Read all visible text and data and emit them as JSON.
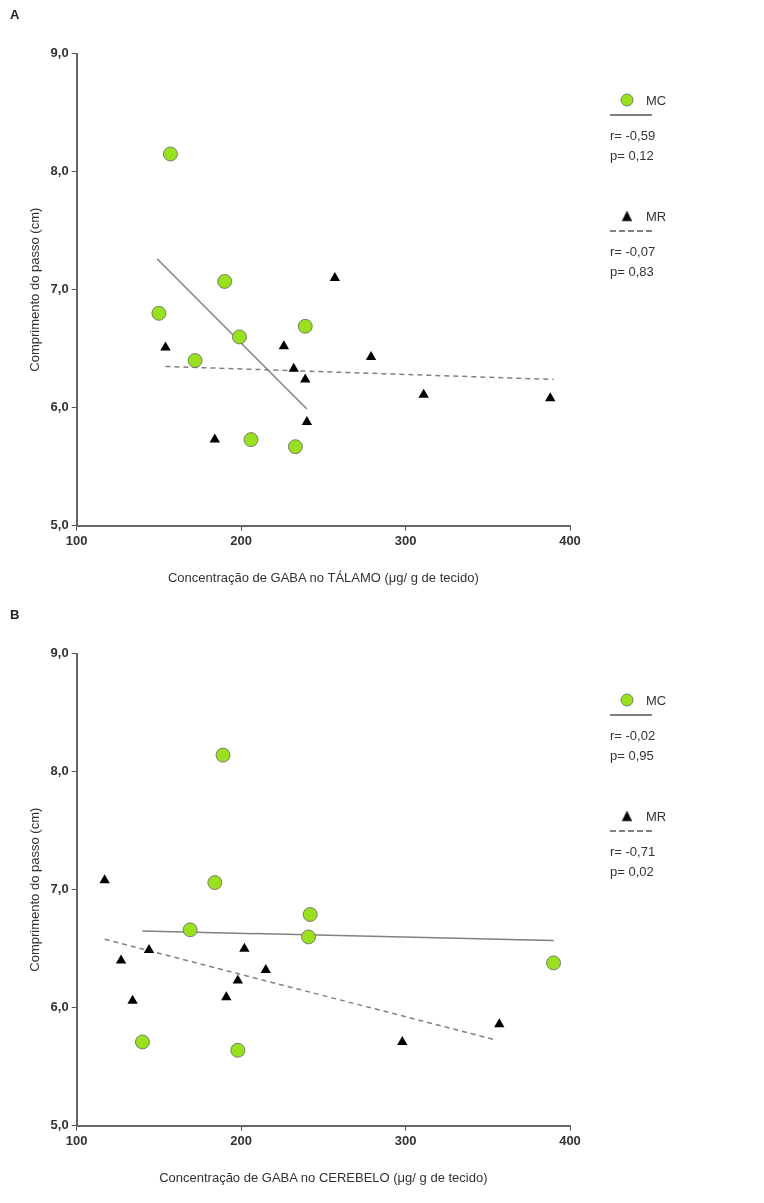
{
  "chart_data": [
    {
      "type": "scatter",
      "title": "A",
      "xlabel": "Concentração de GABA no TÁLAMO (μg/ g de tecido)",
      "ylabel": "Comprimento do passo (cm)",
      "xlim": [
        100,
        400
      ],
      "xticks": [
        100,
        200,
        300,
        400
      ],
      "ylim": [
        5,
        9
      ],
      "yticks": [
        {
          "value": 5,
          "label": "5,0"
        },
        {
          "value": 6,
          "label": "6,0"
        },
        {
          "value": 7,
          "label": "7,0"
        },
        {
          "value": 8,
          "label": "8,0"
        },
        {
          "value": 9,
          "label": "9,0"
        }
      ],
      "grid": false,
      "legend": "right",
      "series": [
        {
          "name": "MC",
          "color": "#99e01f",
          "marker": "circle",
          "x": [
            157,
            150,
            172,
            190,
            199,
            239,
            206,
            233
          ],
          "values": [
            8.15,
            6.8,
            6.4,
            7.07,
            6.6,
            6.69,
            5.73,
            5.67
          ]
        },
        {
          "type": "line",
          "color": "#808080",
          "line_style": "solid",
          "marker": "none",
          "x": [
            149,
            240
          ],
          "values": [
            7.26,
            5.99
          ]
        },
        {
          "name": "MR",
          "color": "#000000",
          "marker": "triangle",
          "x": [
            154,
            184,
            226,
            232,
            239,
            240,
            257,
            279,
            311,
            388
          ],
          "values": [
            6.51,
            5.73,
            6.52,
            6.33,
            6.24,
            5.88,
            7.1,
            6.43,
            6.11,
            6.08
          ]
        },
        {
          "type": "line",
          "color": "#808080",
          "line_style": "dashed",
          "marker": "none",
          "x": [
            154,
            390
          ],
          "values": [
            6.35,
            6.24
          ]
        }
      ],
      "annotations": [
        "r= -0,59",
        "p= 0,12",
        "r= -0,07",
        "p= 0,83"
      ]
    },
    {
      "type": "scatter",
      "title": "B",
      "xlabel": "Concentração de GABA no CEREBELO (μg/ g de tecido)",
      "ylabel": "Comprimento do passo (cm)",
      "xlim": [
        100,
        400
      ],
      "xticks": [
        100,
        200,
        300,
        400
      ],
      "ylim": [
        5,
        9
      ],
      "yticks": [
        {
          "value": 5,
          "label": "5,0"
        },
        {
          "value": 6,
          "label": "6,0"
        },
        {
          "value": 7,
          "label": "7,0"
        },
        {
          "value": 8,
          "label": "8,0"
        },
        {
          "value": 9,
          "label": "9,0"
        }
      ],
      "grid": false,
      "legend": "right",
      "series": [
        {
          "name": "MC",
          "color": "#99e01f",
          "marker": "circle",
          "x": [
            189,
            184,
            169,
            242,
            241,
            390,
            140,
            198
          ],
          "values": [
            8.14,
            7.06,
            6.66,
            6.79,
            6.6,
            6.38,
            5.71,
            5.64
          ]
        },
        {
          "type": "line",
          "color": "#808080",
          "line_style": "solid",
          "marker": "none",
          "x": [
            140,
            390
          ],
          "values": [
            6.65,
            6.57
          ]
        },
        {
          "name": "MR",
          "color": "#000000",
          "marker": "triangle",
          "x": [
            117,
            127,
            144,
            134,
            191,
            198,
            202,
            215,
            298,
            357
          ],
          "values": [
            7.08,
            6.4,
            6.49,
            6.06,
            6.09,
            6.23,
            6.5,
            6.32,
            5.71,
            5.86
          ]
        },
        {
          "type": "line",
          "color": "#808080",
          "line_style": "dashed",
          "marker": "none",
          "x": [
            117,
            354
          ],
          "values": [
            6.58,
            5.73
          ]
        }
      ],
      "annotations": [
        "r= -0,02",
        "p= 0,95",
        "r= -0,71",
        "p= 0,02"
      ]
    }
  ]
}
